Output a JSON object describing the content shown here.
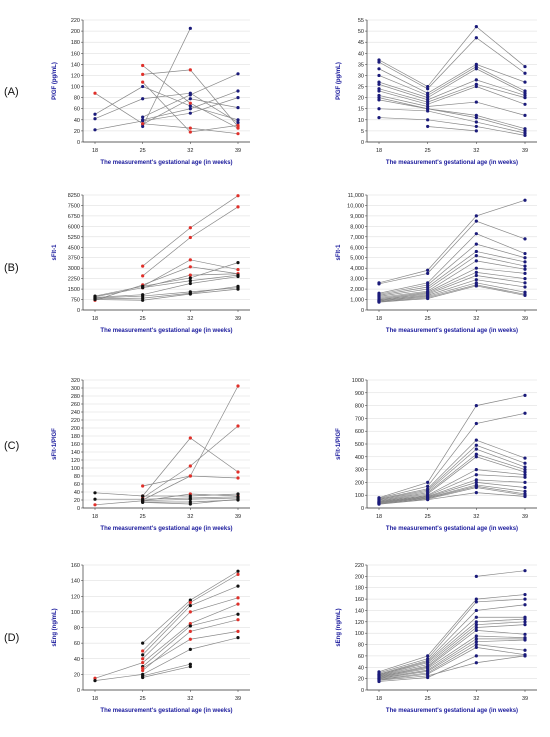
{
  "rows": [
    {
      "label": "(A)"
    },
    {
      "label": "(B)"
    },
    {
      "label": "(C)"
    },
    {
      "label": "(D)"
    }
  ],
  "colors": {
    "line": "#888888",
    "black_marker": "#111111",
    "red_marker": "#e0302a",
    "navy_marker": "#1a1a7a",
    "axis_label": "#1a1a9c"
  },
  "chart_data": [
    {
      "type": "line",
      "panel": "A-left",
      "ylabel": "PlGF (pg/mL)",
      "xlabel": "The measurement's gestational age (in weeks)",
      "categories": [
        "18",
        "25",
        "32",
        "39"
      ],
      "ylim": [
        0,
        220
      ],
      "yticks": [
        "0",
        "20",
        "40",
        "60",
        "80",
        "100",
        "120",
        "140",
        "160",
        "180",
        "200",
        "220"
      ],
      "series": [
        {
          "color": "navy",
          "values": [
            null,
            28,
            205,
            null
          ]
        },
        {
          "color": "navy",
          "values": [
            50,
            100,
            65,
            40
          ]
        },
        {
          "color": "navy",
          "values": [
            42,
            78,
            88,
            35
          ]
        },
        {
          "color": "navy",
          "values": [
            null,
            45,
            85,
            123
          ]
        },
        {
          "color": "navy",
          "values": [
            null,
            40,
            60,
            92
          ]
        },
        {
          "color": "navy",
          "values": [
            null,
            32,
            78,
            62
          ]
        },
        {
          "color": "navy",
          "values": [
            22,
            38,
            52,
            80
          ]
        },
        {
          "color": "red",
          "values": [
            88,
            33,
            25,
            15
          ]
        },
        {
          "color": "red",
          "values": [
            null,
            138,
            70,
            25
          ]
        },
        {
          "color": "red",
          "values": [
            null,
            122,
            130,
            28
          ]
        },
        {
          "color": "red",
          "values": [
            null,
            108,
            18,
            30
          ]
        }
      ]
    },
    {
      "type": "line",
      "panel": "A-right",
      "ylabel": "PlGF (pg/mL)",
      "xlabel": "The measurement's gestational age (in weeks)",
      "categories": [
        "18",
        "25",
        "32",
        "39"
      ],
      "ylim": [
        0,
        55
      ],
      "yticks": [
        "0",
        "5",
        "10",
        "15",
        "20",
        "25",
        "30",
        "35",
        "40",
        "45",
        "50",
        "55"
      ],
      "series": [
        {
          "values": [
            37,
            25,
            52,
            34
          ]
        },
        {
          "values": [
            36,
            24,
            47,
            31
          ]
        },
        {
          "values": [
            33,
            22,
            35,
            27
          ]
        },
        {
          "values": [
            30,
            21,
            34,
            23
          ]
        },
        {
          "values": [
            27,
            20,
            33,
            22
          ]
        },
        {
          "values": [
            26,
            19,
            28,
            21
          ]
        },
        {
          "values": [
            24,
            18,
            26,
            20
          ]
        },
        {
          "values": [
            23,
            17,
            25,
            17
          ]
        },
        {
          "values": [
            21,
            16,
            18,
            12
          ]
        },
        {
          "values": [
            20,
            15,
            12,
            6
          ]
        },
        {
          "values": [
            19,
            15,
            11,
            5
          ]
        },
        {
          "values": [
            15,
            14,
            9,
            4
          ]
        },
        {
          "values": [
            11,
            10,
            7,
            3
          ]
        },
        {
          "values": [
            null,
            7,
            5,
            null
          ]
        }
      ]
    },
    {
      "type": "line",
      "panel": "B-left",
      "ylabel": "sFlt-1",
      "xlabel": "The measurement's gestational age (in weeks)",
      "categories": [
        "18",
        "25",
        "32",
        "39"
      ],
      "ylim": [
        0,
        8250
      ],
      "yticks": [
        "0",
        "750",
        "1500",
        "2250",
        "3000",
        "3750",
        "4500",
        "5250",
        "6000",
        "6750",
        "7500",
        "8250"
      ],
      "series": [
        {
          "color": "red",
          "values": [
            null,
            3150,
            5900,
            8200
          ]
        },
        {
          "color": "red",
          "values": [
            null,
            2450,
            5200,
            7400
          ]
        },
        {
          "color": "red",
          "values": [
            null,
            1700,
            3600,
            2900
          ]
        },
        {
          "color": "red",
          "values": [
            null,
            1600,
            2500,
            2600
          ]
        },
        {
          "color": "red",
          "values": [
            700,
            1800,
            3100,
            2600
          ]
        },
        {
          "color": "black",
          "values": [
            1000,
            1700,
            2300,
            3400
          ]
        },
        {
          "color": "black",
          "values": [
            950,
            1600,
            2100,
            2500
          ]
        },
        {
          "color": "black",
          "values": [
            900,
            1100,
            1900,
            2400
          ]
        },
        {
          "color": "black",
          "values": [
            850,
            1000,
            1300,
            1600
          ]
        },
        {
          "color": "black",
          "values": [
            800,
            850,
            1200,
            1700
          ]
        },
        {
          "color": "black",
          "values": [
            750,
            700,
            1150,
            1500
          ]
        }
      ]
    },
    {
      "type": "line",
      "panel": "B-right",
      "ylabel": "sFlt-1",
      "xlabel": "The measurement's gestational age (in weeks)",
      "categories": [
        "18",
        "25",
        "32",
        "39"
      ],
      "ylim": [
        0,
        11000
      ],
      "yticks": [
        "0",
        "1,000",
        "2,000",
        "3,000",
        "4,000",
        "5,000",
        "6,000",
        "7,000",
        "8,000",
        "9,000",
        "10,000",
        "11,000"
      ],
      "series": [
        {
          "values": [
            2600,
            3800,
            9000,
            10500
          ]
        },
        {
          "values": [
            2500,
            3500,
            8500,
            6800
          ]
        },
        {
          "values": [
            1600,
            2600,
            7300,
            5400
          ]
        },
        {
          "values": [
            1500,
            2400,
            6300,
            5000
          ]
        },
        {
          "values": [
            1400,
            2200,
            5600,
            4600
          ]
        },
        {
          "values": [
            1300,
            2000,
            5200,
            4200
          ]
        },
        {
          "values": [
            1200,
            1800,
            4700,
            3900
          ]
        },
        {
          "values": [
            1100,
            1700,
            4000,
            3500
          ]
        },
        {
          "values": [
            1000,
            1600,
            3600,
            3000
          ]
        },
        {
          "values": [
            950,
            1500,
            3300,
            2600
          ]
        },
        {
          "values": [
            900,
            1400,
            2900,
            2200
          ]
        },
        {
          "values": [
            850,
            1300,
            2600,
            1700
          ]
        },
        {
          "values": [
            800,
            1200,
            2400,
            1500
          ]
        },
        {
          "values": [
            750,
            1100,
            2300,
            1400
          ]
        }
      ]
    },
    {
      "type": "line",
      "panel": "C-left",
      "ylabel": "sFlt-1/PlGF",
      "xlabel": "The measurement's gestational age (in weeks)",
      "categories": [
        "18",
        "25",
        "32",
        "39"
      ],
      "ylim": [
        0,
        320
      ],
      "yticks": [
        "0",
        "20",
        "40",
        "60",
        "80",
        "100",
        "120",
        "140",
        "160",
        "180",
        "200",
        "220",
        "240",
        "260",
        "280",
        "300",
        "320"
      ],
      "series": [
        {
          "color": "red",
          "values": [
            null,
            55,
            80,
            305
          ]
        },
        {
          "color": "red",
          "values": [
            null,
            30,
            175,
            90
          ]
        },
        {
          "color": "red",
          "values": [
            null,
            25,
            105,
            205
          ]
        },
        {
          "color": "red",
          "values": [
            null,
            20,
            80,
            75
          ]
        },
        {
          "color": "red",
          "values": [
            8,
            18,
            35,
            30
          ]
        },
        {
          "color": "black",
          "values": [
            38,
            30,
            30,
            35
          ]
        },
        {
          "color": "black",
          "values": [
            22,
            22,
            25,
            28
          ]
        },
        {
          "color": "black",
          "values": [
            null,
            18,
            22,
            25
          ]
        },
        {
          "color": "black",
          "values": [
            null,
            15,
            15,
            20
          ]
        },
        {
          "color": "black",
          "values": [
            null,
            14,
            10,
            22
          ]
        }
      ]
    },
    {
      "type": "line",
      "panel": "C-right",
      "ylabel": "sFlt-1/PlGF",
      "xlabel": "The measurement's gestational age (in weeks)",
      "categories": [
        "18",
        "25",
        "32",
        "39"
      ],
      "ylim": [
        0,
        1000
      ],
      "yticks": [
        "0",
        "100",
        "200",
        "300",
        "400",
        "500",
        "600",
        "700",
        "800",
        "900",
        "1000"
      ],
      "series": [
        {
          "values": [
            80,
            200,
            800,
            880
          ]
        },
        {
          "values": [
            75,
            170,
            660,
            740
          ]
        },
        {
          "values": [
            70,
            150,
            530,
            390
          ]
        },
        {
          "values": [
            65,
            140,
            490,
            350
          ]
        },
        {
          "values": [
            60,
            130,
            460,
            320
          ]
        },
        {
          "values": [
            55,
            120,
            420,
            300
          ]
        },
        {
          "values": [
            50,
            110,
            400,
            280
          ]
        },
        {
          "values": [
            48,
            100,
            300,
            260
          ]
        },
        {
          "values": [
            45,
            95,
            260,
            240
          ]
        },
        {
          "values": [
            42,
            90,
            220,
            200
          ]
        },
        {
          "values": [
            40,
            85,
            200,
            160
          ]
        },
        {
          "values": [
            38,
            80,
            180,
            130
          ]
        },
        {
          "values": [
            35,
            75,
            170,
            110
          ]
        },
        {
          "values": [
            32,
            70,
            160,
            100
          ]
        },
        {
          "values": [
            30,
            65,
            120,
            90
          ]
        }
      ]
    },
    {
      "type": "line",
      "panel": "D-left",
      "ylabel": "sEng (ng/mL)",
      "xlabel": "The measurement's gestational age (in weeks)",
      "categories": [
        "18",
        "25",
        "32",
        "39"
      ],
      "ylim": [
        0,
        160
      ],
      "yticks": [
        "0",
        "20",
        "40",
        "60",
        "80",
        "100",
        "120",
        "140",
        "160"
      ],
      "series": [
        {
          "color": "black",
          "values": [
            null,
            60,
            115,
            152
          ]
        },
        {
          "color": "red",
          "values": [
            null,
            50,
            112,
            148
          ]
        },
        {
          "color": "black",
          "values": [
            null,
            45,
            108,
            133
          ]
        },
        {
          "color": "red",
          "values": [
            null,
            40,
            100,
            118
          ]
        },
        {
          "color": "red",
          "values": [
            15,
            35,
            85,
            110
          ]
        },
        {
          "color": "black",
          "values": [
            null,
            30,
            82,
            97
          ]
        },
        {
          "color": "red",
          "values": [
            null,
            25,
            75,
            90
          ]
        },
        {
          "color": "red",
          "values": [
            null,
            28,
            65,
            75
          ]
        },
        {
          "color": "black",
          "values": [
            12,
            20,
            52,
            67
          ]
        },
        {
          "color": "black",
          "values": [
            null,
            18,
            33,
            null
          ]
        },
        {
          "color": "black",
          "values": [
            null,
            16,
            30,
            null
          ]
        }
      ]
    },
    {
      "type": "line",
      "panel": "D-right",
      "ylabel": "sEng (ng/mL)",
      "xlabel": "The measurement's gestational age (in weeks)",
      "categories": [
        "18",
        "25",
        "32",
        "39"
      ],
      "ylim": [
        0,
        220
      ],
      "yticks": [
        "0",
        "20",
        "40",
        "60",
        "80",
        "100",
        "120",
        "140",
        "160",
        "180",
        "200",
        "220"
      ],
      "series": [
        {
          "values": [
            null,
            null,
            200,
            210
          ]
        },
        {
          "values": [
            32,
            60,
            160,
            168
          ]
        },
        {
          "values": [
            30,
            55,
            155,
            160
          ]
        },
        {
          "values": [
            28,
            52,
            140,
            150
          ]
        },
        {
          "values": [
            27,
            50,
            128,
            128
          ]
        },
        {
          "values": [
            26,
            48,
            120,
            125
          ]
        },
        {
          "values": [
            25,
            45,
            115,
            120
          ]
        },
        {
          "values": [
            24,
            42,
            110,
            115
          ]
        },
        {
          "values": [
            23,
            40,
            105,
            98
          ]
        },
        {
          "values": [
            22,
            38,
            95,
            92
          ]
        },
        {
          "values": [
            21,
            35,
            90,
            90
          ]
        },
        {
          "values": [
            20,
            33,
            85,
            88
          ]
        },
        {
          "values": [
            19,
            30,
            80,
            70
          ]
        },
        {
          "values": [
            18,
            28,
            75,
            62
          ]
        },
        {
          "values": [
            17,
            25,
            48,
            60
          ]
        },
        {
          "values": [
            15,
            22,
            60,
            60
          ]
        }
      ]
    }
  ]
}
